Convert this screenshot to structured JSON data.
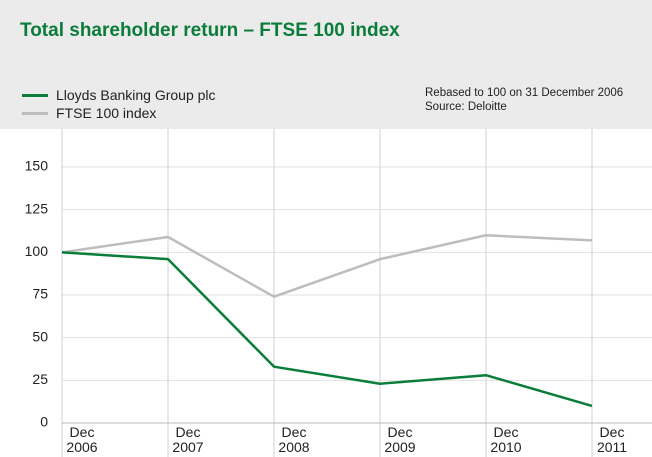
{
  "chart_data": {
    "type": "line",
    "title": "Total shareholder return – FTSE 100 index",
    "annotations": [
      "Rebased to 100 on 31 December 2006",
      "Source: Deloitte"
    ],
    "categories": [
      "Dec 2006",
      "Dec 2007",
      "Dec 2008",
      "Dec 2009",
      "Dec 2010",
      "Dec 2011"
    ],
    "series": [
      {
        "name": "Lloyds Banking Group plc",
        "color": "#0a7d3a",
        "values": [
          100,
          96,
          33,
          23,
          28,
          10
        ]
      },
      {
        "name": "FTSE 100 index",
        "color": "#bdbdbd",
        "values": [
          100,
          109,
          74,
          96,
          110,
          107
        ]
      }
    ],
    "ylim": [
      0,
      150
    ],
    "yticks": [
      0,
      25,
      50,
      75,
      100,
      125,
      150
    ],
    "grid": true,
    "legend": "top-left"
  }
}
